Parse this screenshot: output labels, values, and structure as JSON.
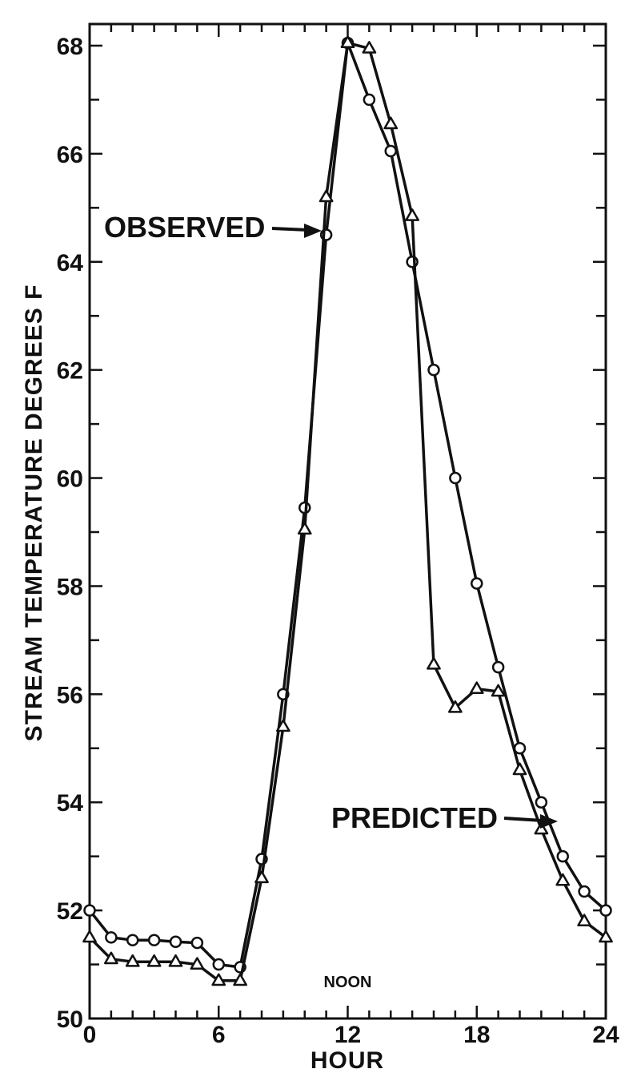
{
  "chart_data": {
    "type": "line",
    "xlabel": "HOUR",
    "ylabel": "STREAM TEMPERATURE DEGREES F",
    "xlim": [
      0,
      24
    ],
    "ylim": [
      50,
      68.4
    ],
    "xticks": [
      0,
      6,
      12,
      18,
      24
    ],
    "xtick_labels": [
      "0",
      "6",
      "12",
      "18",
      "24"
    ],
    "yticks": [
      50,
      52,
      54,
      56,
      58,
      60,
      62,
      64,
      66,
      68
    ],
    "ytick_labels": [
      "50",
      "52",
      "54",
      "56",
      "58",
      "60",
      "62",
      "64",
      "66",
      "68"
    ],
    "grid": false,
    "annotations": {
      "observed": "OBSERVED",
      "predicted": "PREDICTED",
      "noon": "NOON"
    },
    "series": [
      {
        "name": "OBSERVED",
        "marker": "circle",
        "x": [
          0,
          1,
          2,
          3,
          4,
          5,
          6,
          7,
          8,
          9,
          10,
          11,
          12,
          13,
          14,
          15,
          16,
          17,
          18,
          19,
          20,
          21,
          22,
          23,
          24
        ],
        "values": [
          52.0,
          51.5,
          51.45,
          51.45,
          51.42,
          51.4,
          51.0,
          50.95,
          52.95,
          56.0,
          59.45,
          64.5,
          68.05,
          67.0,
          66.05,
          64.0,
          62.0,
          60.0,
          58.05,
          56.5,
          55.0,
          54.0,
          53.0,
          52.35,
          52.0
        ]
      },
      {
        "name": "PREDICTED",
        "marker": "triangle",
        "x": [
          0,
          1,
          2,
          3,
          4,
          5,
          6,
          7,
          8,
          9,
          10,
          11,
          12,
          13,
          14,
          15,
          16,
          17,
          18,
          19,
          20,
          21,
          22,
          23,
          24
        ],
        "values": [
          51.5,
          51.1,
          51.05,
          51.05,
          51.05,
          51.0,
          50.7,
          50.7,
          52.6,
          55.4,
          59.05,
          65.2,
          68.05,
          67.95,
          66.55,
          64.85,
          56.55,
          55.75,
          56.1,
          56.05,
          54.6,
          53.5,
          52.55,
          51.8,
          51.5
        ]
      }
    ]
  }
}
